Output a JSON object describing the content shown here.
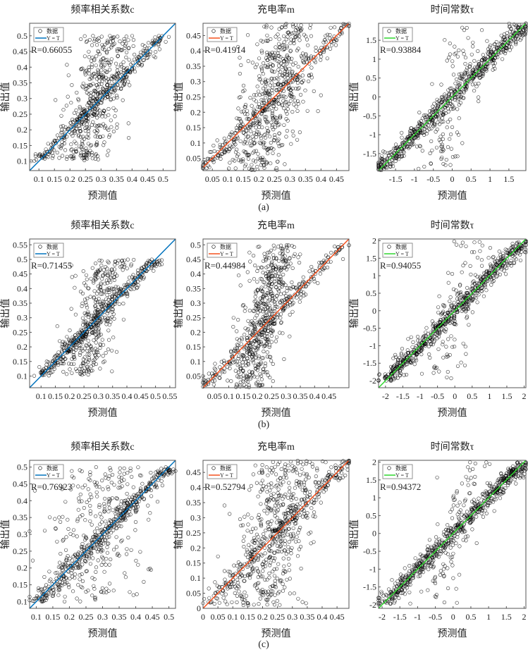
{
  "colors": {
    "blue": "#0072BD",
    "orange": "#F4511E",
    "green": "#2FD62F",
    "marker": "#000000"
  },
  "legend": {
    "data_label": "数据",
    "line_label": "Y = T"
  },
  "xlabel": "预测值",
  "ylabel": "输出值",
  "captions": [
    "(a)",
    "(b)",
    "(c)"
  ],
  "chart_data": [
    {
      "type": "scatter",
      "row": 0,
      "col": 0,
      "title": "频率相关系数c",
      "r_label": "R=0.66055",
      "R": 0.66055,
      "line_color": "blue",
      "xlim": [
        0.07,
        0.54
      ],
      "ylim": [
        0.07,
        0.54
      ],
      "xticks": [
        "0.1",
        "0.15",
        "0.2",
        "0.25",
        "0.3",
        "0.35",
        "0.4",
        "0.45",
        "0.5"
      ],
      "yticks": [
        "0.1",
        "0.15",
        "0.2",
        "0.25",
        "0.3",
        "0.35",
        "0.4",
        "0.45",
        "0.5"
      ],
      "points": {
        "n": 700,
        "y_range": [
          0.1,
          0.5
        ],
        "x_center": 0.29,
        "x_spread": 0.045,
        "fit_share": 0.45,
        "seed": 11
      },
      "show_xlabel": true
    },
    {
      "type": "scatter",
      "row": 0,
      "col": 1,
      "title": "充电率m",
      "r_label": "R=0.41914",
      "R": 0.41914,
      "line_color": "orange",
      "xlim": [
        0.02,
        0.49
      ],
      "ylim": [
        0.01,
        0.49
      ],
      "xticks": [
        "0.05",
        "0.1",
        "0.15",
        "0.2",
        "0.25",
        "0.3",
        "0.35",
        "0.4",
        "0.45"
      ],
      "yticks": [
        "0.05",
        "0.1",
        "0.15",
        "0.2",
        "0.25",
        "0.3",
        "0.35",
        "0.4",
        "0.45"
      ],
      "points": {
        "n": 750,
        "y_range": [
          0.01,
          0.49
        ],
        "x_center": 0.24,
        "x_spread": 0.05,
        "fit_share": 0.3,
        "seed": 23
      },
      "show_xlabel": true
    },
    {
      "type": "scatter",
      "row": 0,
      "col": 2,
      "title": "时间常数τ",
      "r_label": "R=0.93884",
      "R": 0.93884,
      "line_color": "green",
      "xlim": [
        -1.95,
        1.95
      ],
      "ylim": [
        -1.95,
        1.95
      ],
      "xticks": [
        "-1.5",
        "-1",
        "-0.5",
        "0",
        "0.5",
        "1",
        "1.5"
      ],
      "yticks": [
        "-1.5",
        "-1",
        "-0.5",
        "0",
        "0.5",
        "1",
        "1.5"
      ],
      "points": {
        "n": 750,
        "y_range": [
          -1.95,
          1.95
        ],
        "x_center": 0,
        "x_spread": 0.3,
        "fit_share": 0.85,
        "seed": 37
      },
      "show_xlabel": true
    },
    {
      "type": "scatter",
      "row": 1,
      "col": 0,
      "title": "频率相关系数c",
      "r_label": "R=0.71455",
      "R": 0.71455,
      "line_color": "blue",
      "xlim": [
        0.06,
        0.57
      ],
      "ylim": [
        0.06,
        0.57
      ],
      "xticks": [
        "0.1",
        "0.15",
        "0.2",
        "0.25",
        "0.3",
        "0.35",
        "0.4",
        "0.45",
        "0.5",
        "0.55"
      ],
      "yticks": [
        "0.1",
        "0.15",
        "0.2",
        "0.25",
        "0.3",
        "0.35",
        "0.4",
        "0.45",
        "0.5",
        "0.55"
      ],
      "points": {
        "n": 700,
        "y_range": [
          0.1,
          0.5
        ],
        "x_center": 0.29,
        "x_spread": 0.045,
        "fit_share": 0.5,
        "seed": 41
      },
      "show_xlabel": true
    },
    {
      "type": "scatter",
      "row": 1,
      "col": 1,
      "title": "充电率m",
      "r_label": "R=0.44984",
      "R": 0.44984,
      "line_color": "orange",
      "xlim": [
        0.01,
        0.52
      ],
      "ylim": [
        0.01,
        0.52
      ],
      "xticks": [
        "0.05",
        "0.1",
        "0.15",
        "0.2",
        "0.25",
        "0.3",
        "0.35",
        "0.4",
        "0.45"
      ],
      "yticks": [
        "0.05",
        "0.1",
        "0.15",
        "0.2",
        "0.25",
        "0.3",
        "0.35",
        "0.4",
        "0.45",
        "0.5"
      ],
      "points": {
        "n": 750,
        "y_range": [
          0.01,
          0.5
        ],
        "x_center": 0.22,
        "x_spread": 0.04,
        "fit_share": 0.3,
        "seed": 53
      },
      "show_xlabel": true
    },
    {
      "type": "scatter",
      "row": 1,
      "col": 2,
      "title": "时间常数τ",
      "r_label": "R=0.94055",
      "R": 0.94055,
      "line_color": "green",
      "xlim": [
        -2.2,
        2.05
      ],
      "ylim": [
        -2.2,
        2.05
      ],
      "xticks": [
        "-2",
        "-1.5",
        "-1",
        "-0.5",
        "0",
        "0.5",
        "1",
        "1.5",
        "2"
      ],
      "yticks": [
        "-2",
        "-1.5",
        "-1",
        "-0.5",
        "0",
        "0.5",
        "1",
        "1.5",
        "2"
      ],
      "points": {
        "n": 750,
        "y_range": [
          -2,
          2
        ],
        "x_center": 0,
        "x_spread": 0.3,
        "fit_share": 0.85,
        "seed": 67
      },
      "show_xlabel": true
    },
    {
      "type": "scatter",
      "row": 2,
      "col": 0,
      "title": "频率相关系数c",
      "r_label": "R=0.76923",
      "R": 0.76923,
      "line_color": "blue",
      "xlim": [
        0.08,
        0.52
      ],
      "ylim": [
        0.08,
        0.52
      ],
      "xticks": [
        "0.1",
        "0.15",
        "0.2",
        "0.25",
        "0.3",
        "0.35",
        "0.4",
        "0.45",
        "0.5"
      ],
      "yticks": [
        "0.1",
        "0.15",
        "0.2",
        "0.25",
        "0.3",
        "0.35",
        "0.4",
        "0.45",
        "0.5"
      ],
      "points": {
        "n": 700,
        "y_range": [
          0.1,
          0.5
        ],
        "x_center": 0.28,
        "x_spread": 0.08,
        "fit_share": 0.55,
        "seed": 71
      },
      "show_xlabel": true
    },
    {
      "type": "scatter",
      "row": 2,
      "col": 1,
      "title": "充电率m",
      "r_label": "R=0.52794",
      "R": 0.52794,
      "line_color": "orange",
      "xlim": [
        0,
        0.49
      ],
      "ylim": [
        0,
        0.49
      ],
      "xticks": [
        "0",
        "0.05",
        "0.1",
        "0.15",
        "0.2",
        "0.25",
        "0.3",
        "0.35",
        "0.4",
        "0.45"
      ],
      "yticks": [
        "0",
        "0.05",
        "0.1",
        "0.15",
        "0.2",
        "0.25",
        "0.3",
        "0.35",
        "0.4",
        "0.45"
      ],
      "points": {
        "n": 750,
        "y_range": [
          0.01,
          0.49
        ],
        "x_center": 0.24,
        "x_spread": 0.06,
        "fit_share": 0.4,
        "seed": 83
      },
      "show_xlabel": true
    },
    {
      "type": "scatter",
      "row": 2,
      "col": 2,
      "title": "时间常数τ",
      "r_label": "R=0.94372",
      "R": 0.94372,
      "line_color": "green",
      "xlim": [
        -2.1,
        2.05
      ],
      "ylim": [
        -2.1,
        2.05
      ],
      "xticks": [
        "-2",
        "-1.5",
        "-1",
        "-0.5",
        "0",
        "0.5",
        "1",
        "1.5",
        "2"
      ],
      "yticks": [
        "-2",
        "-1.5",
        "-1",
        "-0.5",
        "0",
        "0.5",
        "1",
        "1.5",
        "2"
      ],
      "points": {
        "n": 750,
        "y_range": [
          -2,
          2
        ],
        "x_center": 0,
        "x_spread": 0.3,
        "fit_share": 0.87,
        "seed": 97
      },
      "show_xlabel": true
    }
  ]
}
